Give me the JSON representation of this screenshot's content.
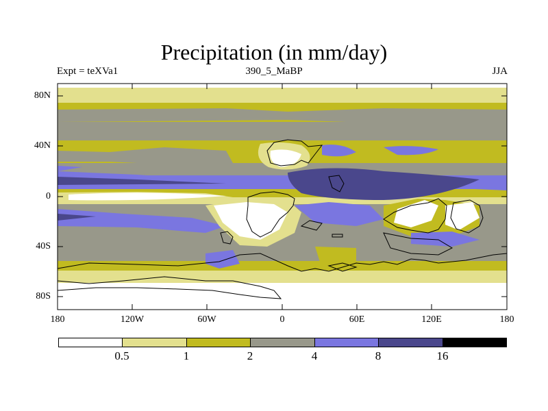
{
  "title": "Precipitation (in mm/day)",
  "subtitle_left": "Expt = teXVa1",
  "subtitle_center": "390_5_MaBP",
  "subtitle_right": "JJA",
  "lat_labels": [
    "80N",
    "40N",
    "0",
    "40S",
    "80S"
  ],
  "lon_labels": [
    "180",
    "120W",
    "60W",
    "0",
    "60E",
    "120E",
    "180"
  ],
  "colorbar": {
    "colors": [
      "#ffffff",
      "#e3e08e",
      "#c1bb20",
      "#98988a",
      "#7a76e0",
      "#4a478c",
      "#000000"
    ],
    "labels": [
      "0.5",
      "1",
      "2",
      "4",
      "8",
      "16"
    ]
  }
}
